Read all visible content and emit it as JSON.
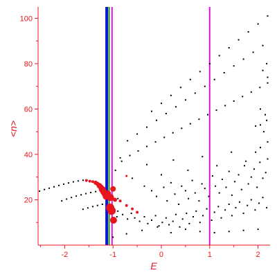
{
  "chart_data": {
    "type": "scatter",
    "xlabel": "E",
    "ylabel": "<n>",
    "xlim": [
      -2.55,
      2.25
    ],
    "ylim": [
      0,
      105
    ],
    "x_ticks": [
      -2,
      -1,
      0,
      1,
      2
    ],
    "x_tick_labels": [
      "-2",
      "-1",
      "0",
      "1",
      "2"
    ],
    "y_ticks": [
      20,
      40,
      60,
      80,
      100
    ],
    "y_tick_labels": [
      "20",
      "40",
      "60",
      "80",
      "100"
    ],
    "grid": false,
    "colors": {
      "axes": "#e8141e",
      "points": "#000000",
      "highlight": "#e8141e",
      "line_blue": "#0a14d2",
      "line_green": "#1ea01e",
      "line_magenta": "#dc14dc"
    },
    "vertical_lines": [
      {
        "x": -1.13,
        "color": "#0a14d2"
      },
      {
        "x": -1.08,
        "color": "#1ea01e"
      },
      {
        "x": -1.02,
        "color": "#dc14dc"
      },
      {
        "x": 1.0,
        "color": "#dc14dc"
      }
    ],
    "highlight_points": [
      {
        "x": -1.55,
        "y": 28.5,
        "size": 2
      },
      {
        "x": -1.48,
        "y": 28.2,
        "size": 2
      },
      {
        "x": -1.42,
        "y": 28.0,
        "size": 2
      },
      {
        "x": -1.36,
        "y": 27.5,
        "size": 3
      },
      {
        "x": -1.32,
        "y": 27.0,
        "size": 3
      },
      {
        "x": -1.28,
        "y": 26.2,
        "size": 4
      },
      {
        "x": -1.25,
        "y": 25.5,
        "size": 4
      },
      {
        "x": -1.22,
        "y": 24.5,
        "size": 5
      },
      {
        "x": -1.19,
        "y": 23.5,
        "size": 5
      },
      {
        "x": -1.16,
        "y": 22.5,
        "size": 5
      },
      {
        "x": -1.14,
        "y": 21.5,
        "size": 5
      },
      {
        "x": -1.1,
        "y": 22.8,
        "size": 4
      },
      {
        "x": -1.05,
        "y": 21.0,
        "size": 5
      },
      {
        "x": -1.0,
        "y": 24.8,
        "size": 4
      },
      {
        "x": -0.96,
        "y": 20.0,
        "size": 3
      },
      {
        "x": -0.85,
        "y": 19.5,
        "size": 2
      },
      {
        "x": -0.72,
        "y": 17.5,
        "size": 2
      },
      {
        "x": -0.6,
        "y": 16.0,
        "size": 2
      },
      {
        "x": -0.5,
        "y": 14.5,
        "size": 2
      },
      {
        "x": -1.06,
        "y": 16.5,
        "size": 6
      },
      {
        "x": -1.03,
        "y": 15.2,
        "size": 6
      },
      {
        "x": -0.99,
        "y": 11.0,
        "size": 5
      },
      {
        "x": -0.72,
        "y": 30.5,
        "size": 1.5
      }
    ],
    "series": [
      {
        "points": [
          [
            -2.52,
            23.8
          ],
          [
            -2.42,
            24.5
          ],
          [
            -2.32,
            25.1
          ],
          [
            -2.22,
            25.7
          ],
          [
            -2.12,
            26.3
          ],
          [
            -2.02,
            26.9
          ],
          [
            -1.92,
            27.4
          ],
          [
            -1.82,
            27.9
          ],
          [
            -1.72,
            28.3
          ],
          [
            -1.62,
            28.6
          ],
          [
            -2.06,
            19.5
          ],
          [
            -1.96,
            20.3
          ],
          [
            -1.86,
            21.0
          ],
          [
            -1.76,
            21.6
          ],
          [
            -1.66,
            22.2
          ],
          [
            -1.56,
            22.7
          ],
          [
            -1.46,
            23.2
          ],
          [
            -1.36,
            23.6
          ],
          [
            -1.62,
            15.8
          ],
          [
            -1.52,
            16.4
          ],
          [
            -1.42,
            17.0
          ],
          [
            -1.32,
            17.5
          ],
          [
            -1.22,
            18.0
          ],
          [
            -0.92,
            12.5
          ],
          [
            -0.9,
            15.0
          ],
          [
            -0.8,
            13.5
          ],
          [
            -0.7,
            11.5
          ],
          [
            -0.62,
            14.0
          ],
          [
            -0.55,
            12.0
          ],
          [
            -0.45,
            10.5
          ],
          [
            -0.35,
            12.5
          ],
          [
            -0.28,
            9.5
          ],
          [
            -0.2,
            11.0
          ],
          [
            -0.12,
            13.0
          ],
          [
            -0.05,
            8.5
          ],
          [
            0.02,
            10.0
          ],
          [
            0.1,
            12.0
          ],
          [
            0.16,
            9.0
          ],
          [
            0.24,
            10.5
          ],
          [
            0.3,
            13.5
          ],
          [
            0.38,
            8.0
          ],
          [
            0.44,
            11.5
          ],
          [
            0.52,
            14.0
          ],
          [
            0.58,
            9.5
          ],
          [
            0.66,
            12.5
          ],
          [
            0.72,
            15.0
          ],
          [
            0.8,
            10.0
          ],
          [
            0.86,
            13.0
          ],
          [
            0.94,
            16.0
          ],
          [
            1.04,
            11.0
          ],
          [
            1.1,
            14.5
          ],
          [
            1.18,
            17.0
          ],
          [
            1.24,
            12.0
          ],
          [
            1.32,
            15.5
          ],
          [
            1.4,
            18.0
          ],
          [
            1.46,
            13.0
          ],
          [
            1.54,
            16.5
          ],
          [
            1.62,
            19.0
          ],
          [
            1.7,
            14.0
          ],
          [
            1.78,
            17.5
          ],
          [
            1.86,
            20.0
          ],
          [
            1.94,
            15.5
          ],
          [
            2.02,
            18.5
          ],
          [
            2.1,
            21.0
          ],
          [
            2.18,
            16.5
          ],
          [
            -0.35,
            26.0
          ],
          [
            -0.2,
            24.0
          ],
          [
            -0.1,
            21.5
          ],
          [
            0.05,
            25.5
          ],
          [
            0.12,
            19.5
          ],
          [
            0.2,
            27.5
          ],
          [
            0.28,
            22.5
          ],
          [
            0.36,
            18.0
          ],
          [
            0.42,
            26.0
          ],
          [
            0.5,
            24.0
          ],
          [
            0.56,
            20.5
          ],
          [
            0.64,
            28.5
          ],
          [
            0.7,
            23.0
          ],
          [
            0.78,
            19.5
          ],
          [
            0.84,
            27.0
          ],
          [
            0.9,
            25.0
          ],
          [
            0.98,
            21.5
          ],
          [
            1.06,
            30.5
          ],
          [
            1.12,
            26.0
          ],
          [
            1.2,
            23.0
          ],
          [
            1.26,
            29.0
          ],
          [
            1.34,
            25.5
          ],
          [
            1.4,
            32.5
          ],
          [
            1.46,
            22.0
          ],
          [
            1.52,
            28.0
          ],
          [
            1.6,
            31.0
          ],
          [
            1.66,
            24.5
          ],
          [
            1.72,
            35.0
          ],
          [
            1.8,
            27.0
          ],
          [
            1.86,
            30.0
          ],
          [
            1.92,
            33.5
          ],
          [
            1.98,
            25.5
          ],
          [
            2.04,
            36.5
          ],
          [
            2.1,
            29.5
          ],
          [
            2.16,
            32.0
          ],
          [
            2.2,
            38.0
          ],
          [
            -1.0,
            3.5
          ],
          [
            -0.72,
            5.0
          ],
          [
            -0.4,
            6.5
          ],
          [
            -0.08,
            8.0
          ],
          [
            0.2,
            5.5
          ],
          [
            0.5,
            7.0
          ],
          [
            0.8,
            6.0
          ],
          [
            1.1,
            5.5
          ],
          [
            1.4,
            6.0
          ],
          [
            1.7,
            6.5
          ],
          [
            2.0,
            7.0
          ],
          [
            -0.82,
            37.0
          ],
          [
            -0.65,
            39.5
          ],
          [
            -0.48,
            41.5
          ],
          [
            -0.3,
            43.5
          ],
          [
            -0.12,
            45.5
          ],
          [
            0.06,
            47.5
          ],
          [
            0.24,
            49.5
          ],
          [
            0.42,
            51.5
          ],
          [
            0.6,
            53.5
          ],
          [
            0.78,
            55.5
          ],
          [
            0.96,
            57.5
          ],
          [
            1.14,
            59.5
          ],
          [
            1.32,
            61.5
          ],
          [
            1.5,
            63.5
          ],
          [
            1.68,
            65.5
          ],
          [
            1.86,
            67.5
          ],
          [
            2.04,
            69.5
          ],
          [
            2.2,
            71.5
          ],
          [
            -0.7,
            46.0
          ],
          [
            -0.5,
            49.0
          ],
          [
            -0.3,
            52.0
          ],
          [
            -0.1,
            55.0
          ],
          [
            0.1,
            58.0
          ],
          [
            0.3,
            61.0
          ],
          [
            0.5,
            64.0
          ],
          [
            0.7,
            67.0
          ],
          [
            0.9,
            70.0
          ],
          [
            1.1,
            73.0
          ],
          [
            1.3,
            76.0
          ],
          [
            1.5,
            79.0
          ],
          [
            1.7,
            82.0
          ],
          [
            1.9,
            85.0
          ],
          [
            2.1,
            88.0
          ],
          [
            -0.2,
            59.0
          ],
          [
            0.0,
            62.5
          ],
          [
            0.2,
            66.0
          ],
          [
            0.4,
            69.5
          ],
          [
            0.6,
            73.0
          ],
          [
            0.8,
            76.5
          ],
          [
            1.0,
            80.0
          ],
          [
            1.2,
            83.5
          ],
          [
            1.4,
            87.0
          ],
          [
            1.6,
            90.5
          ],
          [
            1.8,
            94.0
          ],
          [
            2.0,
            97.5
          ],
          [
            2.2,
            101.0
          ],
          [
            -0.95,
            33.0
          ],
          [
            -0.85,
            38.5
          ],
          [
            -0.9,
            20.5
          ],
          [
            -0.6,
            29.5
          ],
          [
            -0.3,
            35.5
          ],
          [
            0.0,
            31.0
          ],
          [
            0.25,
            37.5
          ],
          [
            0.55,
            33.0
          ],
          [
            0.85,
            39.0
          ],
          [
            1.15,
            35.0
          ],
          [
            1.45,
            41.0
          ],
          [
            1.75,
            37.0
          ],
          [
            2.05,
            43.0
          ],
          [
            2.2,
            45.5
          ],
          [
            1.95,
            52.5
          ],
          [
            2.05,
            53.0
          ],
          [
            2.12,
            50.0
          ],
          [
            2.18,
            55.0
          ],
          [
            2.05,
            60.0
          ],
          [
            2.15,
            57.5
          ],
          [
            2.1,
            77.0
          ],
          [
            2.2,
            74.0
          ],
          [
            2.18,
            80.0
          ],
          [
            1.95,
            41.0
          ]
        ]
      }
    ]
  }
}
